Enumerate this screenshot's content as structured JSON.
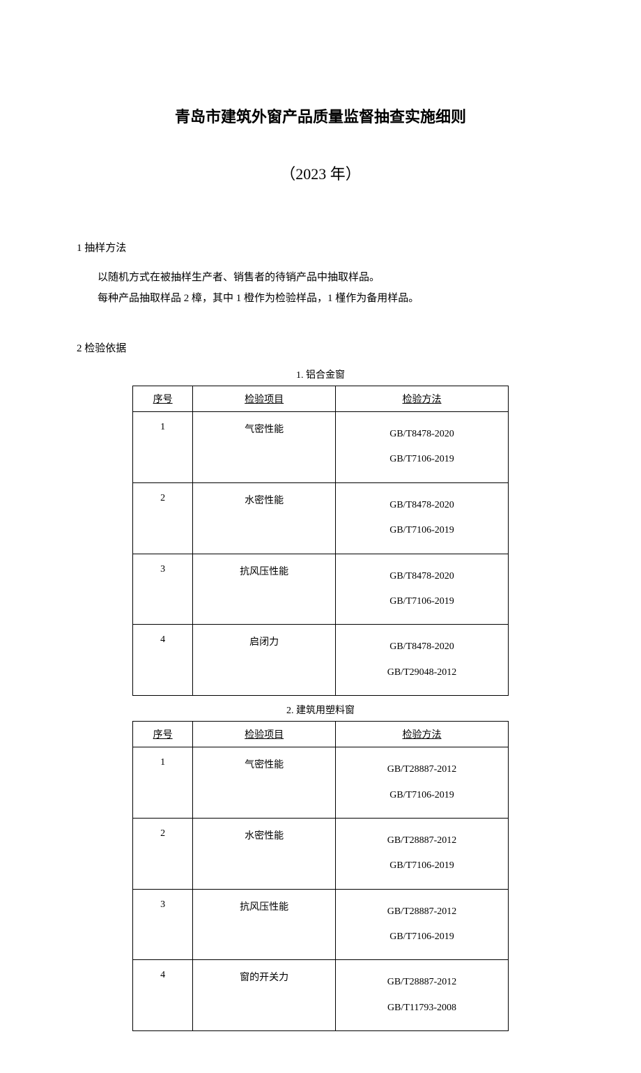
{
  "title": "青岛市建筑外窗产品质量监督抽查实施细则",
  "year": "（2023 年）",
  "section1": {
    "heading": "1 抽样方法",
    "line1": "以随机方式在被抽样生产者、销售者的待销产品中抽取样品。",
    "line2": "每种产品抽取样品 2 樟，其中 1 橙作为检验样品，1 槿作为备用样品。"
  },
  "section2": {
    "heading": "2 检验依据"
  },
  "table1": {
    "caption": "1. 铝合金窗",
    "headers": {
      "seq": "序号",
      "item": "检验项目",
      "method": "检验方法"
    },
    "rows": [
      {
        "seq": "1",
        "item": "气密性能",
        "m1": "GB/T8478-2020",
        "m2": "GB/T7106-2019"
      },
      {
        "seq": "2",
        "item": "水密性能",
        "m1": "GB/T8478-2020",
        "m2": "GB/T7106-2019"
      },
      {
        "seq": "3",
        "item": "抗风压性能",
        "m1": "GB/T8478-2020",
        "m2": "GB/T7106-2019"
      },
      {
        "seq": "4",
        "item": "启闭力",
        "m1": "GB/T8478-2020",
        "m2": "GB/T29048-2012"
      }
    ]
  },
  "table2": {
    "caption": "2. 建筑用塑料窗",
    "headers": {
      "seq": "序号",
      "item": "检验项目",
      "method": "检验方法"
    },
    "rows": [
      {
        "seq": "1",
        "item": "气密性能",
        "m1": "GB/T28887-2012",
        "m2": "GB/T7106-2019"
      },
      {
        "seq": "2",
        "item": "水密性能",
        "m1": "GB/T28887-2012",
        "m2": "GB/T7106-2019"
      },
      {
        "seq": "3",
        "item": "抗风压性能",
        "m1": "GB/T28887-2012",
        "m2": "GB/T7106-2019"
      },
      {
        "seq": "4",
        "item": "窗的开关力",
        "m1": "GB/T28887-2012",
        "m2": "GB/T11793-2008"
      }
    ]
  }
}
